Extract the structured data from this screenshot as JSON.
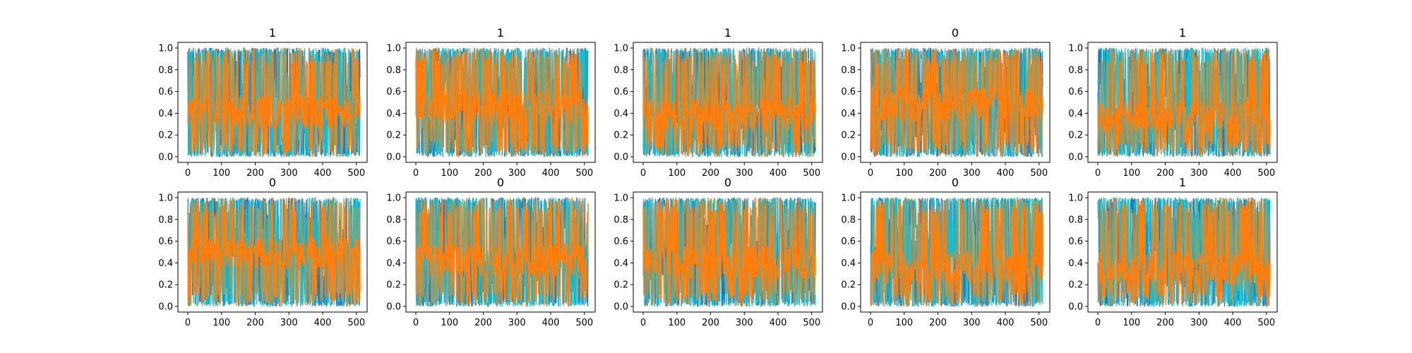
{
  "figure": {
    "background": "#ffffff",
    "layout": {
      "rows": 2,
      "cols": 5
    }
  },
  "chart_data": [
    {
      "type": "line",
      "title": "1",
      "x": [
        0,
        511
      ],
      "xlim": [
        0,
        511
      ],
      "ylim": [
        0,
        1
      ],
      "xticks": [
        0,
        100,
        200,
        300,
        400,
        500
      ],
      "yticks": [
        0.0,
        0.2,
        0.4,
        0.6,
        0.8,
        1.0
      ],
      "grid": false,
      "series": [
        {
          "color": "#1f77b4"
        },
        {
          "color": "#17becf"
        },
        {
          "color": "#ff7f0e"
        }
      ],
      "description_level": 0.35
    },
    {
      "type": "line",
      "title": "1",
      "x": [
        0,
        511
      ],
      "xlim": [
        0,
        511
      ],
      "ylim": [
        0,
        1
      ],
      "xticks": [
        0,
        100,
        200,
        300,
        400,
        500
      ],
      "yticks": [
        0.0,
        0.2,
        0.4,
        0.6,
        0.8,
        1.0
      ],
      "grid": false,
      "series": [
        {
          "color": "#1f77b4"
        },
        {
          "color": "#17becf"
        },
        {
          "color": "#ff7f0e"
        }
      ]
    },
    {
      "type": "line",
      "title": "1",
      "x": [
        0,
        511
      ],
      "xlim": [
        0,
        511
      ],
      "ylim": [
        0,
        1
      ],
      "xticks": [
        0,
        100,
        200,
        300,
        400,
        500
      ],
      "yticks": [
        0.0,
        0.2,
        0.4,
        0.6,
        0.8,
        1.0
      ],
      "grid": false,
      "series": [
        {
          "color": "#1f77b4"
        },
        {
          "color": "#17becf"
        },
        {
          "color": "#ff7f0e"
        }
      ]
    },
    {
      "type": "line",
      "title": "0",
      "x": [
        0,
        511
      ],
      "xlim": [
        0,
        511
      ],
      "ylim": [
        0,
        1
      ],
      "xticks": [
        0,
        100,
        200,
        300,
        400,
        500
      ],
      "yticks": [
        0.0,
        0.2,
        0.4,
        0.6,
        0.8,
        1.0
      ],
      "grid": false,
      "series": [
        {
          "color": "#1f77b4"
        },
        {
          "color": "#17becf"
        },
        {
          "color": "#ff7f0e"
        }
      ]
    },
    {
      "type": "line",
      "title": "1",
      "x": [
        0,
        511
      ],
      "xlim": [
        0,
        511
      ],
      "ylim": [
        0,
        1
      ],
      "xticks": [
        0,
        100,
        200,
        300,
        400,
        500
      ],
      "yticks": [
        0.0,
        0.2,
        0.4,
        0.6,
        0.8,
        1.0
      ],
      "grid": false,
      "series": [
        {
          "color": "#1f77b4"
        },
        {
          "color": "#17becf"
        },
        {
          "color": "#ff7f0e"
        }
      ]
    },
    {
      "type": "line",
      "title": "0",
      "x": [
        0,
        511
      ],
      "xlim": [
        0,
        511
      ],
      "ylim": [
        0,
        1
      ],
      "xticks": [
        0,
        100,
        200,
        300,
        400,
        500
      ],
      "yticks": [
        0.0,
        0.2,
        0.4,
        0.6,
        0.8,
        1.0
      ],
      "grid": false,
      "series": [
        {
          "color": "#1f77b4"
        },
        {
          "color": "#17becf"
        },
        {
          "color": "#ff7f0e"
        }
      ]
    },
    {
      "type": "line",
      "title": "0",
      "x": [
        0,
        511
      ],
      "xlim": [
        0,
        511
      ],
      "ylim": [
        0,
        1
      ],
      "xticks": [
        0,
        100,
        200,
        300,
        400,
        500
      ],
      "yticks": [
        0.0,
        0.2,
        0.4,
        0.6,
        0.8,
        1.0
      ],
      "grid": false,
      "series": [
        {
          "color": "#1f77b4"
        },
        {
          "color": "#17becf"
        },
        {
          "color": "#ff7f0e"
        }
      ]
    },
    {
      "type": "line",
      "title": "0",
      "x": [
        0,
        511
      ],
      "xlim": [
        0,
        511
      ],
      "ylim": [
        0,
        1
      ],
      "xticks": [
        0,
        100,
        200,
        300,
        400,
        500
      ],
      "yticks": [
        0.0,
        0.2,
        0.4,
        0.6,
        0.8,
        1.0
      ],
      "grid": false,
      "series": [
        {
          "color": "#1f77b4"
        },
        {
          "color": "#17becf"
        },
        {
          "color": "#ff7f0e"
        }
      ]
    },
    {
      "type": "line",
      "title": "0",
      "x": [
        0,
        511
      ],
      "xlim": [
        0,
        511
      ],
      "ylim": [
        0,
        1
      ],
      "xticks": [
        0,
        100,
        200,
        300,
        400,
        500
      ],
      "yticks": [
        0.0,
        0.2,
        0.4,
        0.6,
        0.8,
        1.0
      ],
      "grid": false,
      "series": [
        {
          "color": "#1f77b4"
        },
        {
          "color": "#17becf"
        },
        {
          "color": "#ff7f0e"
        }
      ]
    },
    {
      "type": "line",
      "title": "1",
      "x": [
        0,
        511
      ],
      "xlim": [
        0,
        511
      ],
      "ylim": [
        0,
        1
      ],
      "xticks": [
        0,
        100,
        200,
        300,
        400,
        500
      ],
      "yticks": [
        0.0,
        0.2,
        0.4,
        0.6,
        0.8,
        1.0
      ],
      "grid": false,
      "series": [
        {
          "color": "#1f77b4"
        },
        {
          "color": "#17becf"
        },
        {
          "color": "#ff7f0e"
        }
      ]
    }
  ]
}
